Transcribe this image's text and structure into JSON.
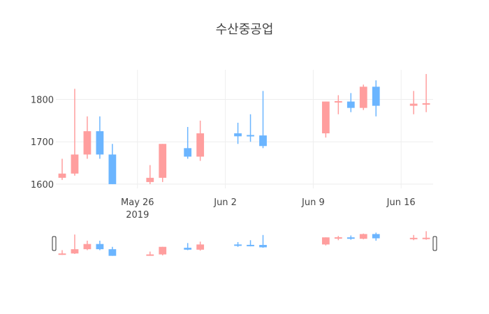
{
  "chart_data": {
    "type": "candlestick",
    "title": "수산중공업",
    "xlabel": "",
    "ylabel": "",
    "ylim": [
      1590,
      1870
    ],
    "y_ticks": [
      1600,
      1700,
      1800
    ],
    "x_range": [
      "2019-05-20",
      "2019-06-19"
    ],
    "x_ticks": [
      {
        "date": "2019-05-26",
        "label": "May 26",
        "sublabel": "2019"
      },
      {
        "date": "2019-06-02",
        "label": "Jun 2",
        "sublabel": ""
      },
      {
        "date": "2019-06-09",
        "label": "Jun 9",
        "sublabel": ""
      },
      {
        "date": "2019-06-16",
        "label": "Jun 16",
        "sublabel": ""
      }
    ],
    "colors": {
      "increasing": "#FF9E9E",
      "decreasing": "#6BB5FF",
      "grid": "#EEEEEE"
    },
    "grid": true,
    "range_slider": true,
    "candles": [
      {
        "date": "2019-05-20",
        "open": 1615,
        "high": 1660,
        "low": 1610,
        "close": 1625
      },
      {
        "date": "2019-05-21",
        "open": 1625,
        "high": 1825,
        "low": 1620,
        "close": 1670
      },
      {
        "date": "2019-05-22",
        "open": 1670,
        "high": 1760,
        "low": 1660,
        "close": 1725
      },
      {
        "date": "2019-05-23",
        "open": 1725,
        "high": 1760,
        "low": 1660,
        "close": 1670
      },
      {
        "date": "2019-05-24",
        "open": 1670,
        "high": 1695,
        "low": 1600,
        "close": 1600
      },
      {
        "date": "2019-05-27",
        "open": 1605,
        "high": 1645,
        "low": 1600,
        "close": 1615
      },
      {
        "date": "2019-05-28",
        "open": 1615,
        "high": 1695,
        "low": 1605,
        "close": 1695
      },
      {
        "date": "2019-05-30",
        "open": 1685,
        "high": 1735,
        "low": 1660,
        "close": 1665
      },
      {
        "date": "2019-05-31",
        "open": 1665,
        "high": 1750,
        "low": 1655,
        "close": 1720
      },
      {
        "date": "2019-06-03",
        "open": 1720,
        "high": 1745,
        "low": 1695,
        "close": 1713
      },
      {
        "date": "2019-06-04",
        "open": 1716,
        "high": 1765,
        "low": 1700,
        "close": 1713
      },
      {
        "date": "2019-06-05",
        "open": 1715,
        "high": 1820,
        "low": 1685,
        "close": 1690
      },
      {
        "date": "2019-06-10",
        "open": 1720,
        "high": 1795,
        "low": 1710,
        "close": 1795
      },
      {
        "date": "2019-06-11",
        "open": 1793,
        "high": 1810,
        "low": 1765,
        "close": 1796
      },
      {
        "date": "2019-06-12",
        "open": 1795,
        "high": 1815,
        "low": 1770,
        "close": 1780
      },
      {
        "date": "2019-06-13",
        "open": 1780,
        "high": 1835,
        "low": 1775,
        "close": 1830
      },
      {
        "date": "2019-06-14",
        "open": 1830,
        "high": 1845,
        "low": 1760,
        "close": 1785
      },
      {
        "date": "2019-06-17",
        "open": 1785,
        "high": 1820,
        "low": 1765,
        "close": 1790
      },
      {
        "date": "2019-06-18",
        "open": 1788,
        "high": 1860,
        "low": 1770,
        "close": 1791
      }
    ]
  }
}
